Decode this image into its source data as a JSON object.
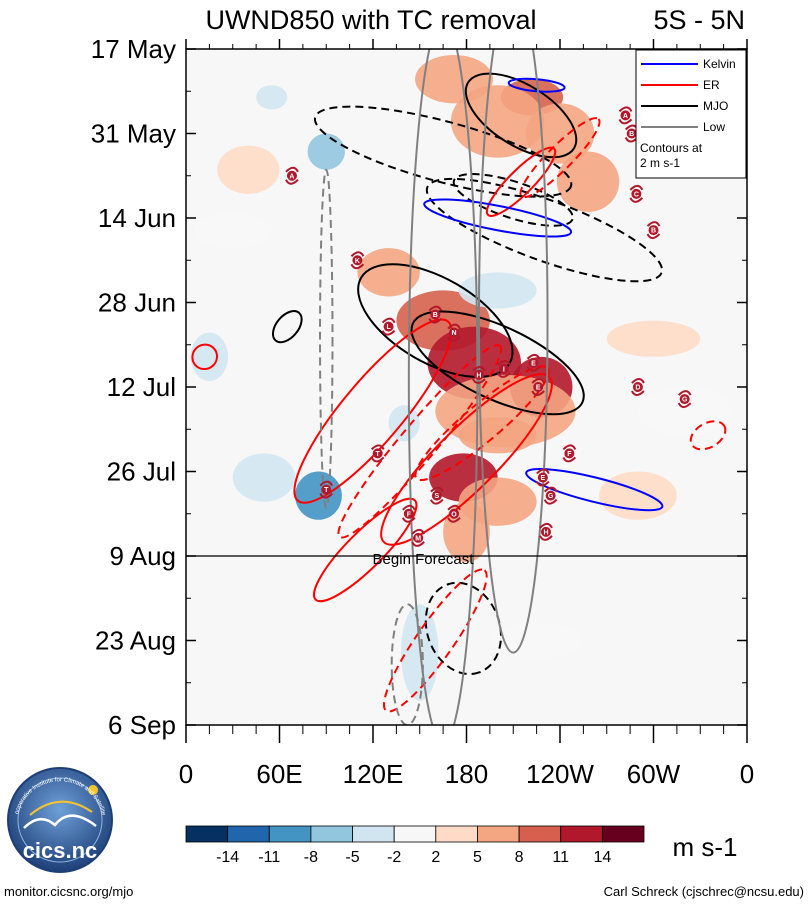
{
  "chart_data": {
    "type": "heatmap",
    "title": "UWND850 with TC removal",
    "subtitle": "5S - 5N",
    "xlabel": "",
    "ylabel": "",
    "x_ticks": [
      {
        "lon": 0,
        "label": "0"
      },
      {
        "lon": 60,
        "label": "60E"
      },
      {
        "lon": 120,
        "label": "120E"
      },
      {
        "lon": 180,
        "label": "180"
      },
      {
        "lon": 240,
        "label": "120W"
      },
      {
        "lon": 300,
        "label": "60W"
      },
      {
        "lon": 360,
        "label": "0"
      }
    ],
    "y_ticks": [
      {
        "day": 0,
        "label": "17 May"
      },
      {
        "day": 14,
        "label": "31 May"
      },
      {
        "day": 28,
        "label": "14 Jun"
      },
      {
        "day": 42,
        "label": "28 Jun"
      },
      {
        "day": 56,
        "label": "12 Jul"
      },
      {
        "day": 70,
        "label": "26 Jul"
      },
      {
        "day": 84,
        "label": "9 Aug"
      },
      {
        "day": 98,
        "label": "23 Aug"
      },
      {
        "day": 112,
        "label": "6 Sep"
      }
    ],
    "xlim": [
      0,
      360
    ],
    "ylim_days": [
      0,
      112
    ],
    "forecast_start_day": 84,
    "forecast_label": "Begin Forecast",
    "legend": {
      "placement": "top-right",
      "entries": [
        {
          "name": "Kelvin",
          "color": "#0000ff",
          "dash": false
        },
        {
          "name": "ER",
          "color": "#ff0000",
          "dash": false
        },
        {
          "name": "MJO",
          "color": "#000000",
          "dash": false
        },
        {
          "name": "Low",
          "color": "#808080",
          "dash": false
        }
      ],
      "note_line1": "Contours at",
      "note_line2": "2 m s-1"
    },
    "colorbar": {
      "labels": [
        "-14",
        "-11",
        "-8",
        "-5",
        "-2",
        "2",
        "5",
        "8",
        "11",
        "14"
      ],
      "colors": [
        "#053061",
        "#2166ac",
        "#4393c3",
        "#92c5de",
        "#d1e5f0",
        "#f7f7f7",
        "#fddbc7",
        "#f4a582",
        "#d6604d",
        "#b2182b",
        "#67001f"
      ],
      "units": "m s-1"
    },
    "anomaly_blobs": [
      {
        "lon": 172,
        "day": 5,
        "rlon": 25,
        "rday": 4,
        "value": 7
      },
      {
        "lon": 222,
        "day": 8,
        "rlon": 20,
        "rday": 3,
        "value": 9
      },
      {
        "lon": 240,
        "day": 14,
        "rlon": 22,
        "rday": 5,
        "value": 7
      },
      {
        "lon": 200,
        "day": 12,
        "rlon": 30,
        "rday": 6,
        "value": 5
      },
      {
        "lon": 258,
        "day": 22,
        "rlon": 20,
        "rday": 5,
        "value": 5
      },
      {
        "lon": 130,
        "day": 37,
        "rlon": 20,
        "rday": 4,
        "value": 6
      },
      {
        "lon": 165,
        "day": 45,
        "rlon": 30,
        "rday": 5,
        "value": 8
      },
      {
        "lon": 185,
        "day": 52,
        "rlon": 30,
        "rday": 6,
        "value": 11
      },
      {
        "lon": 228,
        "day": 56,
        "rlon": 20,
        "rday": 5,
        "value": 12
      },
      {
        "lon": 205,
        "day": 60,
        "rlon": 45,
        "rday": 6,
        "value": 5
      },
      {
        "lon": 178,
        "day": 71,
        "rlon": 22,
        "rday": 4,
        "value": 12
      },
      {
        "lon": 200,
        "day": 75,
        "rlon": 25,
        "rday": 4,
        "value": 7
      },
      {
        "lon": 180,
        "day": 80,
        "rlon": 15,
        "rday": 5,
        "value": 5
      },
      {
        "lon": 200,
        "day": 64,
        "rlon": 25,
        "rday": 3,
        "value": 6
      },
      {
        "lon": 90,
        "day": 17,
        "rlon": 12,
        "rday": 3,
        "value": -8
      },
      {
        "lon": 55,
        "day": 8,
        "rlon": 10,
        "rday": 2,
        "value": -5
      },
      {
        "lon": 15,
        "day": 51,
        "rlon": 12,
        "rday": 4,
        "value": -5
      },
      {
        "lon": 85,
        "day": 74,
        "rlon": 15,
        "rday": 4,
        "value": -10
      },
      {
        "lon": 50,
        "day": 71,
        "rlon": 20,
        "rday": 4,
        "value": -5
      },
      {
        "lon": 140,
        "day": 62,
        "rlon": 10,
        "rday": 3,
        "value": -5
      },
      {
        "lon": 200,
        "day": 40,
        "rlon": 25,
        "rday": 3,
        "value": -5
      },
      {
        "lon": 150,
        "day": 100,
        "rlon": 12,
        "rday": 8,
        "value": -5
      },
      {
        "lon": 225,
        "day": 98,
        "rlon": 30,
        "rday": 3,
        "value": -2
      },
      {
        "lon": 320,
        "day": 60,
        "rlon": 30,
        "rday": 4,
        "value": -2
      },
      {
        "lon": 30,
        "day": 30,
        "rlon": 25,
        "rday": 3,
        "value": -2
      },
      {
        "lon": 300,
        "day": 48,
        "rlon": 30,
        "rday": 3,
        "value": 2
      },
      {
        "lon": 290,
        "day": 74,
        "rlon": 25,
        "rday": 4,
        "value": 2
      },
      {
        "lon": 40,
        "day": 20,
        "rlon": 20,
        "rday": 4,
        "value": 2
      }
    ],
    "contours": [
      {
        "wave": "MJO",
        "sign": "+",
        "color": "#000000",
        "dash": false,
        "lon": 215,
        "day": 11,
        "rlon": 40,
        "rday": 5,
        "angle": 32
      },
      {
        "wave": "MJO",
        "sign": "-",
        "color": "#000000",
        "dash": true,
        "lon": 165,
        "day": 17,
        "rlon": 85,
        "rday": 5,
        "angle": 15
      },
      {
        "wave": "MJO",
        "sign": "-",
        "color": "#000000",
        "dash": true,
        "lon": 230,
        "day": 30,
        "rlon": 80,
        "rday": 5,
        "angle": 20
      },
      {
        "wave": "MJO",
        "sign": "-",
        "color": "#000000",
        "dash": true,
        "lon": 210,
        "day": 25,
        "rlon": 40,
        "rday": 3,
        "angle": 18
      },
      {
        "wave": "MJO",
        "sign": "+",
        "color": "#000000",
        "dash": false,
        "lon": 160,
        "day": 45,
        "rlon": 55,
        "rday": 7,
        "angle": 30
      },
      {
        "wave": "MJO",
        "sign": "+",
        "color": "#000000",
        "dash": false,
        "lon": 200,
        "day": 52,
        "rlon": 60,
        "rday": 6,
        "angle": 25
      },
      {
        "wave": "MJO",
        "sign": "+",
        "color": "#000000",
        "dash": false,
        "lon": 65,
        "day": 46,
        "rlon": 7,
        "rday": 3,
        "angle": 40
      },
      {
        "wave": "MJO",
        "sign": "-",
        "color": "#000000",
        "dash": true,
        "lon": 178,
        "day": 96,
        "rlon": 30,
        "rday": 6,
        "angle": 70
      },
      {
        "wave": "ER",
        "sign": "+",
        "color": "#ff0000",
        "dash": false,
        "lon": 120,
        "day": 60,
        "rlon": 75,
        "rday": 5,
        "angle": -50
      },
      {
        "wave": "ER",
        "sign": "+",
        "color": "#ff0000",
        "dash": false,
        "lon": 180,
        "day": 68,
        "rlon": 75,
        "rday": 5,
        "angle": -45
      },
      {
        "wave": "ER",
        "sign": "+",
        "color": "#ff0000",
        "dash": false,
        "lon": 115,
        "day": 83,
        "rlon": 45,
        "rday": 3,
        "angle": -45
      },
      {
        "wave": "ER",
        "sign": "-",
        "color": "#ff0000",
        "dash": true,
        "lon": 150,
        "day": 65,
        "rlon": 80,
        "rday": 3,
        "angle": -50
      },
      {
        "wave": "ER",
        "sign": "-",
        "color": "#ff0000",
        "dash": true,
        "lon": 190,
        "day": 62,
        "rlon": 55,
        "rday": 3,
        "angle": -40
      },
      {
        "wave": "ER",
        "sign": "-",
        "color": "#ff0000",
        "dash": true,
        "lon": 160,
        "day": 98,
        "rlon": 55,
        "rday": 3,
        "angle": -55
      },
      {
        "wave": "ER",
        "sign": "+",
        "color": "#ff0000",
        "dash": false,
        "lon": 215,
        "day": 22,
        "rlon": 30,
        "rday": 2,
        "angle": -45
      },
      {
        "wave": "ER",
        "sign": "-",
        "color": "#ff0000",
        "dash": true,
        "lon": 240,
        "day": 18,
        "rlon": 35,
        "rday": 2,
        "angle": -45
      },
      {
        "wave": "ER",
        "sign": "+",
        "color": "#ff0000",
        "dash": false,
        "lon": 12,
        "day": 51,
        "rlon": 8,
        "rday": 2,
        "angle": -40
      },
      {
        "wave": "ER",
        "sign": "-",
        "color": "#ff0000",
        "dash": true,
        "lon": 335,
        "day": 64,
        "rlon": 12,
        "rday": 2,
        "angle": -30
      },
      {
        "wave": "Kelvin",
        "sign": "+",
        "color": "#0000ff",
        "dash": false,
        "lon": 200,
        "day": 28,
        "rlon": 48,
        "rday": 2,
        "angle": 11
      },
      {
        "wave": "Kelvin",
        "sign": "+",
        "color": "#0000ff",
        "dash": false,
        "lon": 262,
        "day": 73,
        "rlon": 45,
        "rday": 2,
        "angle": 14
      },
      {
        "wave": "Kelvin",
        "sign": "+",
        "color": "#0000ff",
        "dash": false,
        "lon": 225,
        "day": 6,
        "rlon": 18,
        "rday": 1,
        "angle": 5
      },
      {
        "wave": "Low",
        "sign": "+",
        "color": "#808080",
        "dash": false,
        "lon": 165,
        "day": 55,
        "rlon": 22,
        "rday": 60,
        "angle": 0
      },
      {
        "wave": "Low",
        "sign": "+",
        "color": "#808080",
        "dash": false,
        "lon": 210,
        "day": 45,
        "rlon": 22,
        "rday": 55,
        "angle": 0
      },
      {
        "wave": "Low",
        "sign": "-",
        "color": "#808080",
        "dash": true,
        "lon": 90,
        "day": 48,
        "rlon": 4,
        "rday": 28,
        "angle": 0
      },
      {
        "wave": "Low",
        "sign": "-",
        "color": "#808080",
        "dash": true,
        "lon": 142,
        "day": 102,
        "rlon": 10,
        "rday": 10,
        "angle": 0
      }
    ],
    "tropical_cyclones": [
      {
        "id": "A",
        "lon": 282,
        "day": 11
      },
      {
        "id": "B",
        "lon": 286,
        "day": 14
      },
      {
        "id": "C",
        "lon": 289,
        "day": 24
      },
      {
        "id": "A",
        "lon": 68,
        "day": 21
      },
      {
        "id": "B",
        "lon": 300,
        "day": 30
      },
      {
        "id": "K",
        "lon": 110,
        "day": 35
      },
      {
        "id": "B",
        "lon": 160,
        "day": 44
      },
      {
        "id": "L",
        "lon": 130,
        "day": 46
      },
      {
        "id": "N",
        "lon": 172,
        "day": 47
      },
      {
        "id": "E",
        "lon": 223,
        "day": 52
      },
      {
        "id": "H",
        "lon": 188,
        "day": 54
      },
      {
        "id": "I",
        "lon": 204,
        "day": 53
      },
      {
        "id": "E",
        "lon": 226,
        "day": 56
      },
      {
        "id": "D",
        "lon": 290,
        "day": 56
      },
      {
        "id": "G",
        "lon": 320,
        "day": 58
      },
      {
        "id": "T",
        "lon": 123,
        "day": 67
      },
      {
        "id": "F",
        "lon": 246,
        "day": 67
      },
      {
        "id": "E",
        "lon": 229,
        "day": 71
      },
      {
        "id": "G",
        "lon": 234,
        "day": 74
      },
      {
        "id": "T",
        "lon": 90,
        "day": 73
      },
      {
        "id": "S",
        "lon": 161,
        "day": 74
      },
      {
        "id": "F",
        "lon": 143,
        "day": 77
      },
      {
        "id": "O",
        "lon": 172,
        "day": 77
      },
      {
        "id": "H",
        "lon": 231,
        "day": 80
      },
      {
        "id": "M",
        "lon": 149,
        "day": 81
      }
    ]
  },
  "logo": {
    "text": "cics.nc",
    "ring_text": "Cooperative Institute for Climate and Satellites"
  },
  "footer": {
    "left": "monitor.cicsnc.org/mjo",
    "right": "Carl Schreck (cjschrec@ncsu.edu)"
  }
}
